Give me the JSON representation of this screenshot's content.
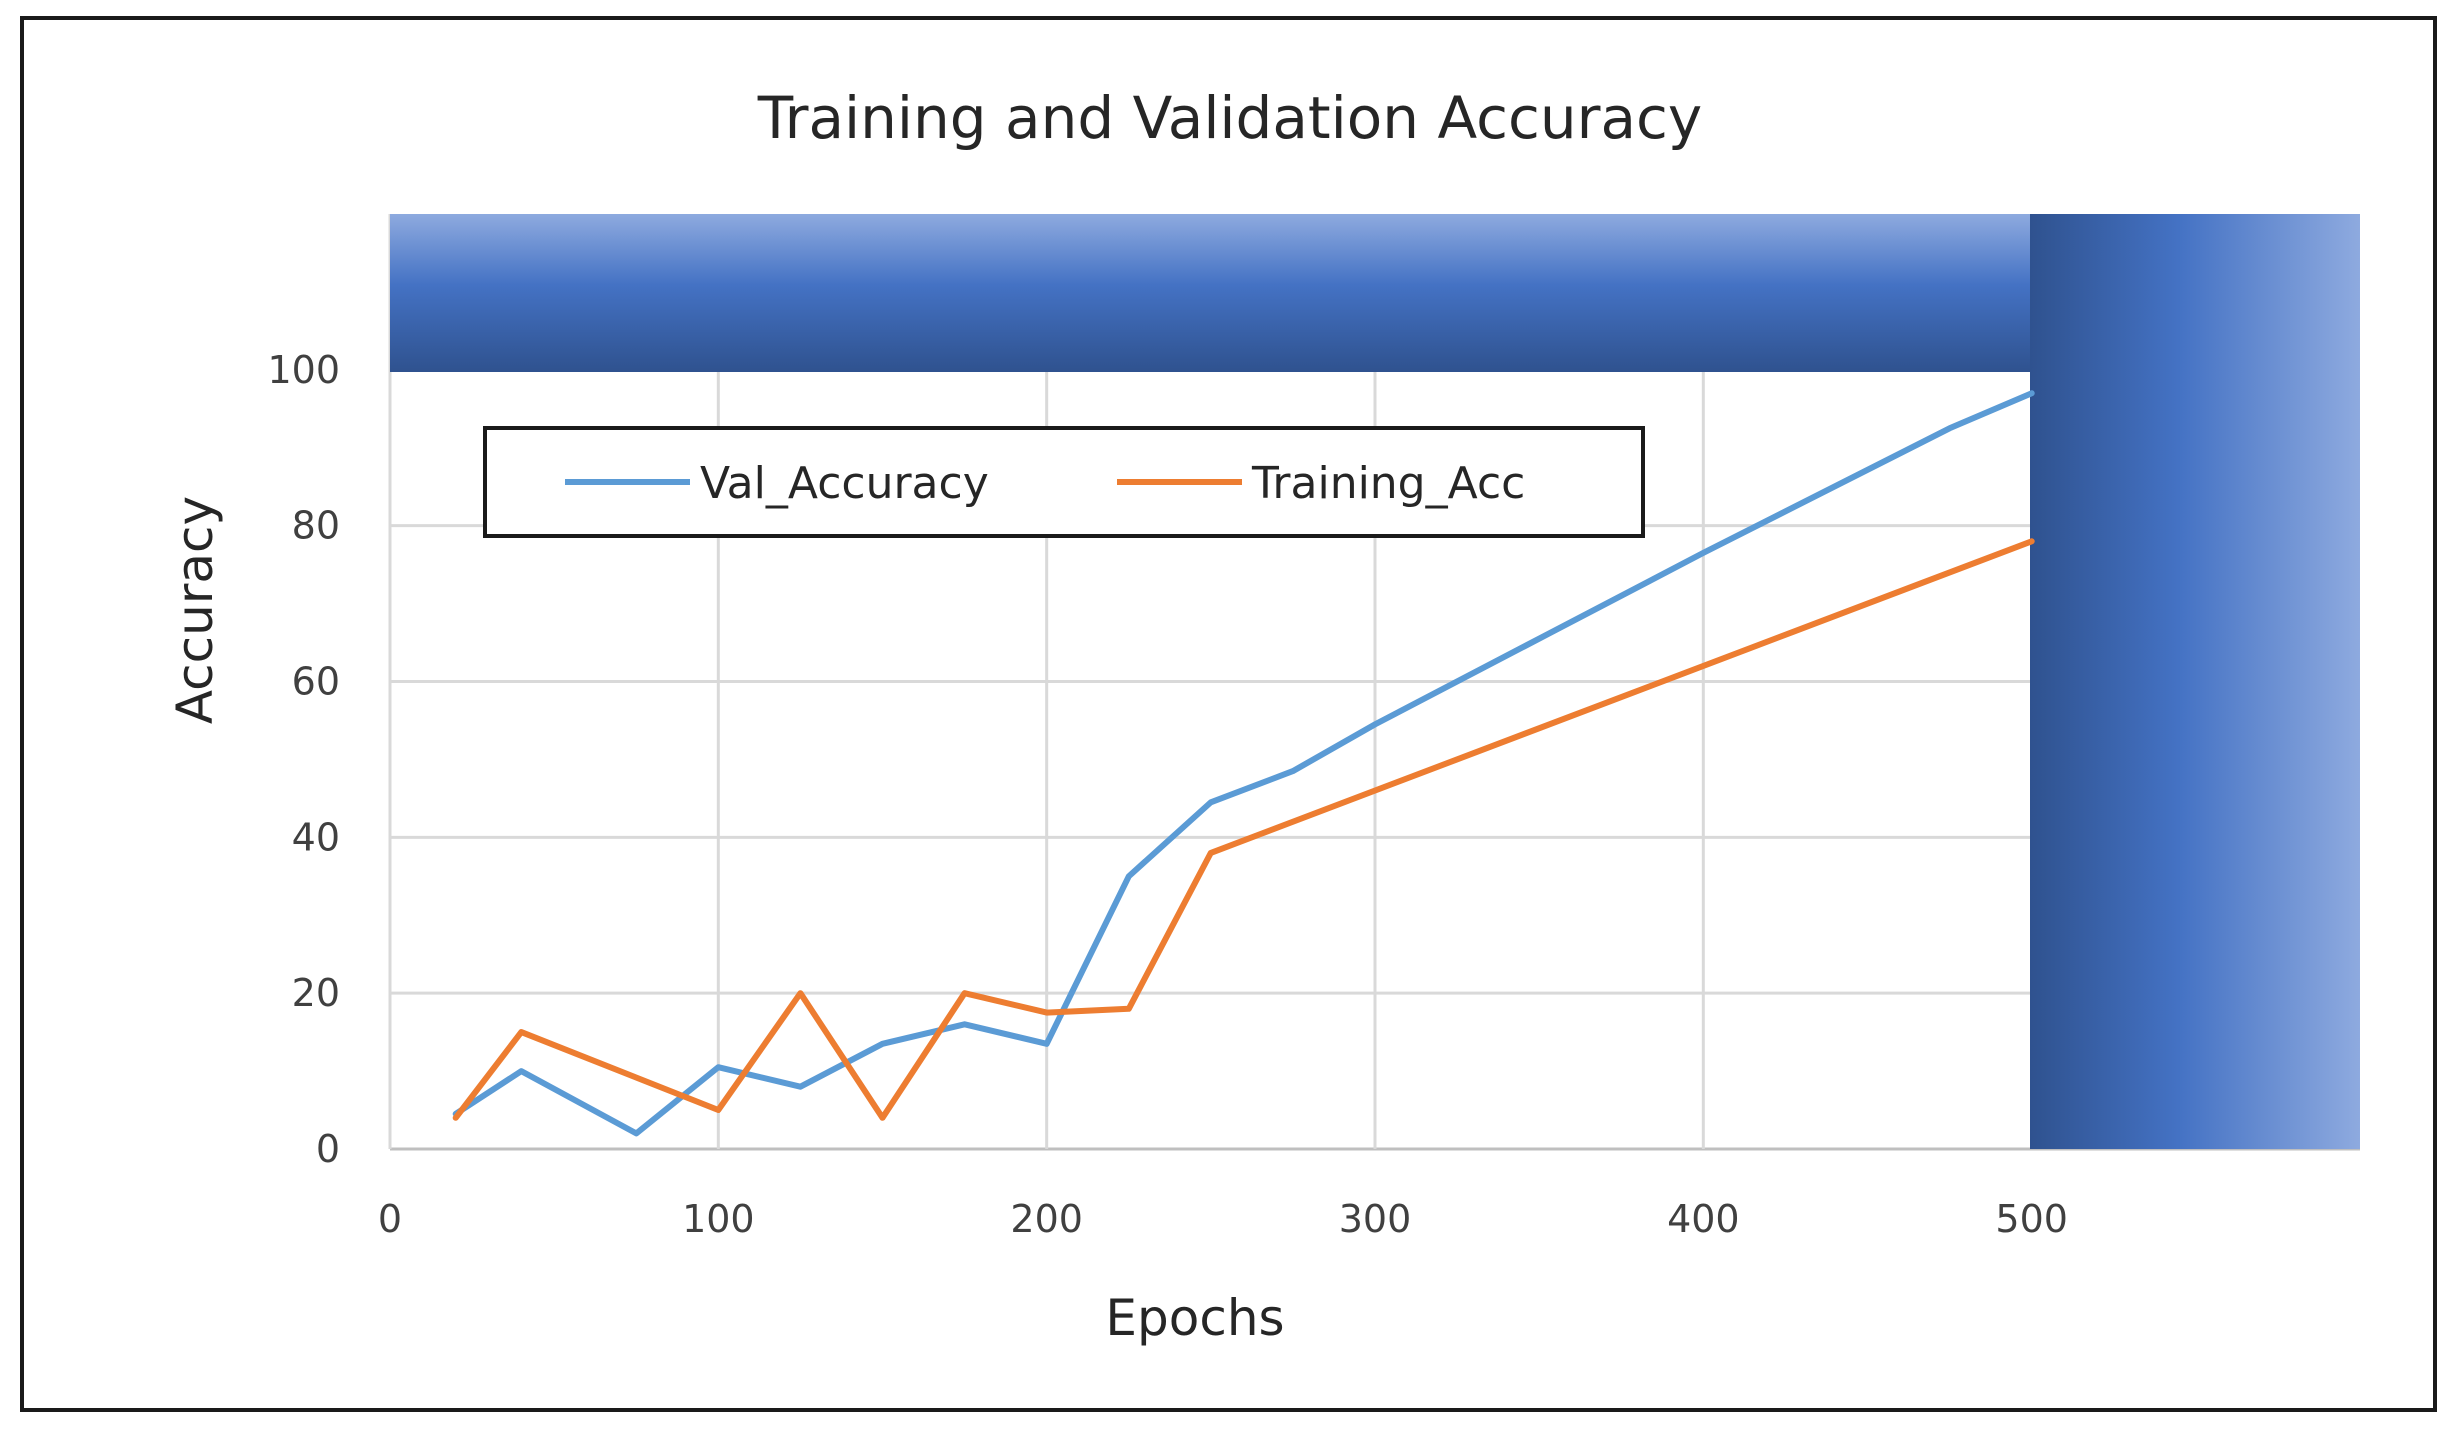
{
  "chart_data": {
    "type": "line",
    "title": "Training and Validation Accuracy",
    "xlabel": "Epochs",
    "ylabel": "Accuracy",
    "xlim": [
      0,
      600
    ],
    "ylim": [
      0,
      120
    ],
    "xticks": [
      0,
      100,
      200,
      300,
      400,
      500
    ],
    "yticks": [
      0,
      20,
      40,
      60,
      80,
      100
    ],
    "grid": true,
    "legend": "top-left",
    "series": [
      {
        "name": "Val_Accuracy",
        "color": "#5b9bd5",
        "x": [
          20,
          40,
          75,
          100,
          125,
          150,
          175,
          200,
          225,
          250,
          275,
          300,
          400,
          475,
          500
        ],
        "y": [
          4.5,
          10,
          2,
          10.5,
          8,
          13.5,
          16,
          13.5,
          35,
          44.5,
          48.5,
          54.5,
          76.5,
          92.5,
          97
        ]
      },
      {
        "name": "Training_Acc",
        "color": "#ed7d31",
        "x": [
          20,
          40,
          100,
          125,
          150,
          175,
          200,
          225,
          250,
          500
        ],
        "y": [
          4,
          15,
          5,
          20,
          4,
          20,
          17.5,
          18,
          38,
          78
        ]
      }
    ]
  }
}
